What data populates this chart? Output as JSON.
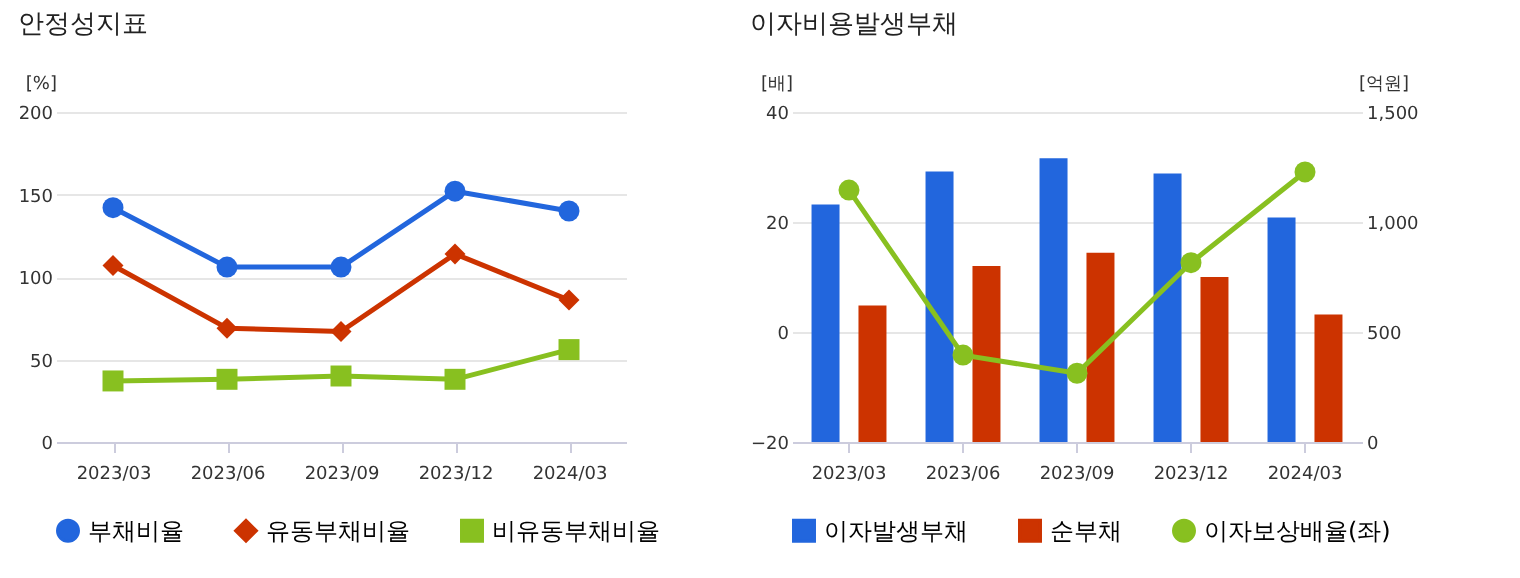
{
  "chart_data": [
    {
      "type": "line",
      "title": "안정성지표",
      "ylabel": "[%]",
      "categories": [
        "2023/03",
        "2023/06",
        "2023/09",
        "2023/12",
        "2024/03"
      ],
      "ylim": [
        0,
        200
      ],
      "yticks": [
        0,
        50,
        100,
        150,
        200
      ],
      "grid": "y",
      "legend": "bottom",
      "series": [
        {
          "name": "부채비율",
          "color": "#2266dd",
          "marker": "circle",
          "values": [
            142,
            106,
            106,
            152,
            140
          ]
        },
        {
          "name": "유동부채비율",
          "color": "#cc3300",
          "marker": "diamond",
          "values": [
            107,
            69,
            67,
            114,
            86
          ]
        },
        {
          "name": "비유동부채비율",
          "color": "#88c020",
          "marker": "square",
          "values": [
            37,
            38,
            40,
            38,
            56
          ]
        }
      ]
    },
    {
      "type": "bar",
      "title": "이자비용발생부채",
      "ylabel": "[배]",
      "y2label": "[억원]",
      "categories": [
        "2023/03",
        "2023/06",
        "2023/09",
        "2023/12",
        "2024/03"
      ],
      "ylim": [
        -20,
        40
      ],
      "yticks": [
        -20,
        0,
        20,
        40
      ],
      "y2lim": [
        0,
        1500
      ],
      "y2ticks": [
        0,
        500,
        {
          "value": 1000,
          "label": "1,000"
        },
        {
          "value": 1500,
          "label": "1,500"
        }
      ],
      "grid": "y",
      "legend": "bottom",
      "series": [
        {
          "name": "이자발생부채",
          "color": "#2266dd",
          "axis": "y2",
          "values": [
            1080,
            1230,
            1290,
            1220,
            1020
          ]
        },
        {
          "name": "순부채",
          "color": "#cc3300",
          "axis": "y2",
          "values": [
            620,
            800,
            860,
            750,
            580
          ]
        },
        {
          "name": "이자보상배율(좌)",
          "color": "#88c020",
          "type": "line",
          "marker": "circle",
          "axis": "y",
          "values": [
            25.8,
            -4.2,
            -7.5,
            12.6,
            29.1
          ]
        }
      ]
    }
  ]
}
